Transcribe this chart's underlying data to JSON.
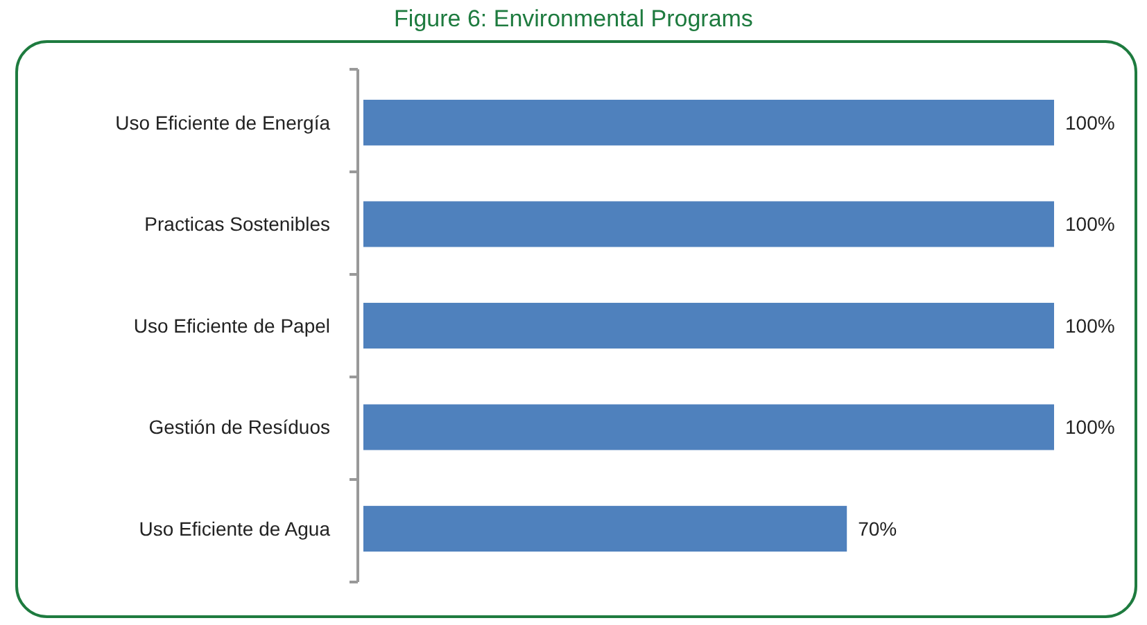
{
  "chart_data": {
    "type": "bar",
    "orientation": "horizontal",
    "title": "Figure 6: Environmental Programs",
    "categories": [
      "Uso Eficiente de Energía",
      "Practicas Sostenibles",
      "Uso Eficiente de Papel",
      "Gestión de Resíduos",
      "Uso Eficiente de Agua"
    ],
    "values": [
      100,
      100,
      100,
      100,
      70
    ],
    "value_labels": [
      "100%",
      "100%",
      "100%",
      "100%",
      "70%"
    ],
    "color": "#4f81bd",
    "xlim": [
      0,
      100
    ],
    "tick_labels": "y"
  }
}
